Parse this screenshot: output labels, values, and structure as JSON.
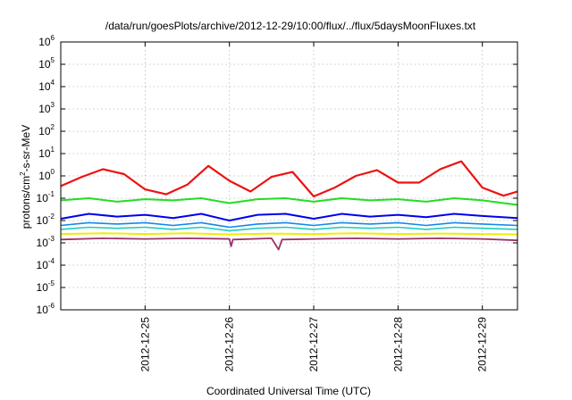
{
  "chart_data": {
    "type": "line",
    "title": "/data/run/goesPlots/archive/2012-12-29/10:00/flux/../flux/5daysMoonFluxes.txt",
    "xlabel": "Coordinated Universal Time (UTC)",
    "ylabel_parts": {
      "before": "protons/cm",
      "sup": "2",
      "after": "-s-sr-MeV"
    },
    "y_scale": "log",
    "ylim": [
      1e-06,
      1000000.0
    ],
    "xlim": [
      "2012-12-24T00:00",
      "2012-12-29T10:00"
    ],
    "grid": true,
    "y_ticks": [
      {
        "value": 1e-06,
        "base": "10",
        "exp": "-6"
      },
      {
        "value": 1e-05,
        "base": "10",
        "exp": "-5"
      },
      {
        "value": 0.0001,
        "base": "10",
        "exp": "-4"
      },
      {
        "value": 0.001,
        "base": "10",
        "exp": "-3"
      },
      {
        "value": 0.01,
        "base": "10",
        "exp": "-2"
      },
      {
        "value": 0.1,
        "base": "10",
        "exp": "-1"
      },
      {
        "value": 1.0,
        "base": "10",
        "exp": "0"
      },
      {
        "value": 10.0,
        "base": "10",
        "exp": "1"
      },
      {
        "value": 100.0,
        "base": "10",
        "exp": "2"
      },
      {
        "value": 1000.0,
        "base": "10",
        "exp": "3"
      },
      {
        "value": 10000.0,
        "base": "10",
        "exp": "4"
      },
      {
        "value": 100000.0,
        "base": "10",
        "exp": "5"
      },
      {
        "value": 1000000.0,
        "base": "10",
        "exp": "6"
      }
    ],
    "x_ticks": [
      {
        "date": "2012-12-25T00:00",
        "label": "2012-12-25"
      },
      {
        "date": "2012-12-26T00:00",
        "label": "2012-12-26"
      },
      {
        "date": "2012-12-27T00:00",
        "label": "2012-12-27"
      },
      {
        "date": "2012-12-28T00:00",
        "label": "2012-12-28"
      },
      {
        "date": "2012-12-29T00:00",
        "label": "2012-12-29"
      }
    ],
    "series": [
      {
        "color": "#ee1111",
        "width": 2.2,
        "values": [
          [
            "2012-12-24T00:00",
            0.35
          ],
          [
            "2012-12-24T06:00",
            0.9
          ],
          [
            "2012-12-24T12:00",
            2.0
          ],
          [
            "2012-12-24T18:00",
            1.2
          ],
          [
            "2012-12-25T00:00",
            0.25
          ],
          [
            "2012-12-25T06:00",
            0.15
          ],
          [
            "2012-12-25T12:00",
            0.4
          ],
          [
            "2012-12-25T18:00",
            2.8
          ],
          [
            "2012-12-26T00:00",
            0.6
          ],
          [
            "2012-12-26T06:00",
            0.2
          ],
          [
            "2012-12-26T12:00",
            0.9
          ],
          [
            "2012-12-26T18:00",
            1.5
          ],
          [
            "2012-12-27T00:00",
            0.12
          ],
          [
            "2012-12-27T06:00",
            0.3
          ],
          [
            "2012-12-27T12:00",
            1.0
          ],
          [
            "2012-12-27T18:00",
            1.8
          ],
          [
            "2012-12-28T00:00",
            0.5
          ],
          [
            "2012-12-28T06:00",
            0.5
          ],
          [
            "2012-12-28T12:00",
            2.0
          ],
          [
            "2012-12-28T18:00",
            4.5
          ],
          [
            "2012-12-29T00:00",
            0.3
          ],
          [
            "2012-12-29T06:00",
            0.13
          ],
          [
            "2012-12-29T10:00",
            0.2
          ]
        ]
      },
      {
        "color": "#22dd22",
        "width": 2.0,
        "values": [
          [
            "2012-12-24T00:00",
            0.08
          ],
          [
            "2012-12-24T08:00",
            0.1
          ],
          [
            "2012-12-24T16:00",
            0.07
          ],
          [
            "2012-12-25T00:00",
            0.09
          ],
          [
            "2012-12-25T08:00",
            0.08
          ],
          [
            "2012-12-25T16:00",
            0.1
          ],
          [
            "2012-12-26T00:00",
            0.06
          ],
          [
            "2012-12-26T08:00",
            0.09
          ],
          [
            "2012-12-26T16:00",
            0.1
          ],
          [
            "2012-12-27T00:00",
            0.07
          ],
          [
            "2012-12-27T08:00",
            0.1
          ],
          [
            "2012-12-27T16:00",
            0.08
          ],
          [
            "2012-12-28T00:00",
            0.09
          ],
          [
            "2012-12-28T08:00",
            0.07
          ],
          [
            "2012-12-28T16:00",
            0.1
          ],
          [
            "2012-12-29T00:00",
            0.08
          ],
          [
            "2012-12-29T10:00",
            0.05
          ]
        ]
      },
      {
        "color": "#0000ee",
        "width": 2.0,
        "values": [
          [
            "2012-12-24T00:00",
            0.012
          ],
          [
            "2012-12-24T08:00",
            0.02
          ],
          [
            "2012-12-24T16:00",
            0.015
          ],
          [
            "2012-12-25T00:00",
            0.018
          ],
          [
            "2012-12-25T08:00",
            0.013
          ],
          [
            "2012-12-25T16:00",
            0.02
          ],
          [
            "2012-12-26T00:00",
            0.01
          ],
          [
            "2012-12-26T08:00",
            0.018
          ],
          [
            "2012-12-26T16:00",
            0.02
          ],
          [
            "2012-12-27T00:00",
            0.012
          ],
          [
            "2012-12-27T08:00",
            0.02
          ],
          [
            "2012-12-27T16:00",
            0.015
          ],
          [
            "2012-12-28T00:00",
            0.018
          ],
          [
            "2012-12-28T08:00",
            0.014
          ],
          [
            "2012-12-28T16:00",
            0.02
          ],
          [
            "2012-12-29T00:00",
            0.016
          ],
          [
            "2012-12-29T10:00",
            0.013
          ]
        ]
      },
      {
        "color": "#1188ee",
        "width": 1.6,
        "values": [
          [
            "2012-12-24T00:00",
            0.006
          ],
          [
            "2012-12-24T08:00",
            0.008
          ],
          [
            "2012-12-24T16:00",
            0.007
          ],
          [
            "2012-12-25T00:00",
            0.008
          ],
          [
            "2012-12-25T08:00",
            0.006
          ],
          [
            "2012-12-25T16:00",
            0.008
          ],
          [
            "2012-12-26T00:00",
            0.005
          ],
          [
            "2012-12-26T08:00",
            0.007
          ],
          [
            "2012-12-26T16:00",
            0.008
          ],
          [
            "2012-12-27T00:00",
            0.006
          ],
          [
            "2012-12-27T08:00",
            0.008
          ],
          [
            "2012-12-27T16:00",
            0.007
          ],
          [
            "2012-12-28T00:00",
            0.008
          ],
          [
            "2012-12-28T08:00",
            0.006
          ],
          [
            "2012-12-28T16:00",
            0.008
          ],
          [
            "2012-12-29T00:00",
            0.007
          ],
          [
            "2012-12-29T10:00",
            0.006
          ]
        ]
      },
      {
        "color": "#22ccbb",
        "width": 1.6,
        "values": [
          [
            "2012-12-24T00:00",
            0.004
          ],
          [
            "2012-12-24T08:00",
            0.005
          ],
          [
            "2012-12-24T16:00",
            0.0045
          ],
          [
            "2012-12-25T00:00",
            0.005
          ],
          [
            "2012-12-25T08:00",
            0.004
          ],
          [
            "2012-12-25T16:00",
            0.005
          ],
          [
            "2012-12-26T00:00",
            0.0035
          ],
          [
            "2012-12-26T08:00",
            0.0045
          ],
          [
            "2012-12-26T16:00",
            0.005
          ],
          [
            "2012-12-27T00:00",
            0.004
          ],
          [
            "2012-12-27T08:00",
            0.005
          ],
          [
            "2012-12-27T16:00",
            0.0045
          ],
          [
            "2012-12-28T00:00",
            0.005
          ],
          [
            "2012-12-28T08:00",
            0.004
          ],
          [
            "2012-12-28T16:00",
            0.005
          ],
          [
            "2012-12-29T00:00",
            0.0045
          ],
          [
            "2012-12-29T10:00",
            0.004
          ]
        ]
      },
      {
        "color": "#eeee00",
        "width": 2.0,
        "values": [
          [
            "2012-12-24T00:00",
            0.0025
          ],
          [
            "2012-12-24T12:00",
            0.0027
          ],
          [
            "2012-12-25T00:00",
            0.0025
          ],
          [
            "2012-12-25T12:00",
            0.0027
          ],
          [
            "2012-12-26T00:00",
            0.0024
          ],
          [
            "2012-12-26T12:00",
            0.0026
          ],
          [
            "2012-12-27T00:00",
            0.0025
          ],
          [
            "2012-12-27T12:00",
            0.0027
          ],
          [
            "2012-12-28T00:00",
            0.0025
          ],
          [
            "2012-12-28T12:00",
            0.0026
          ],
          [
            "2012-12-29T00:00",
            0.0025
          ],
          [
            "2012-12-29T10:00",
            0.0024
          ]
        ]
      },
      {
        "color": "#993366",
        "width": 1.8,
        "values": [
          [
            "2012-12-24T00:00",
            0.0014
          ],
          [
            "2012-12-24T12:00",
            0.0016
          ],
          [
            "2012-12-25T00:00",
            0.0015
          ],
          [
            "2012-12-25T12:00",
            0.0016
          ],
          [
            "2012-12-26T00:00",
            0.0015
          ],
          [
            "2012-12-26T00:30",
            0.0007
          ],
          [
            "2012-12-26T01:00",
            0.0014
          ],
          [
            "2012-12-26T12:00",
            0.0016
          ],
          [
            "2012-12-26T14:00",
            0.0005
          ],
          [
            "2012-12-26T15:00",
            0.0014
          ],
          [
            "2012-12-27T00:00",
            0.0015
          ],
          [
            "2012-12-27T12:00",
            0.0016
          ],
          [
            "2012-12-28T00:00",
            0.0015
          ],
          [
            "2012-12-28T12:00",
            0.0016
          ],
          [
            "2012-12-29T00:00",
            0.0015
          ],
          [
            "2012-12-29T10:00",
            0.0013
          ]
        ]
      }
    ]
  }
}
